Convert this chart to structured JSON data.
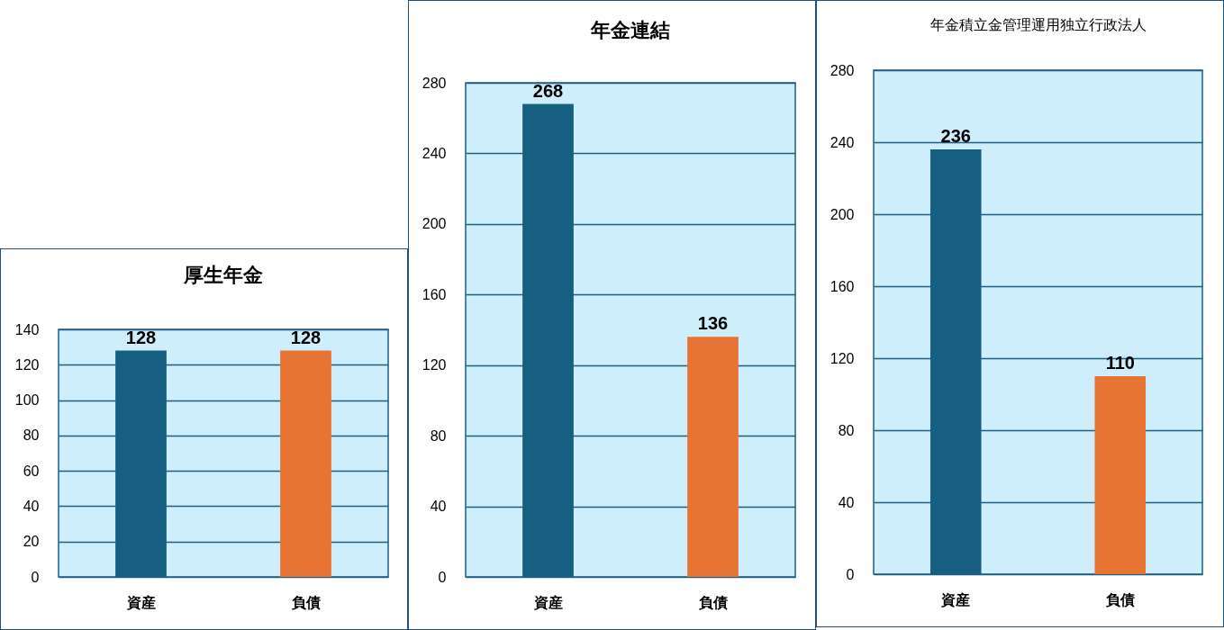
{
  "chart_data": [
    {
      "type": "bar",
      "title": "厚生年金",
      "categories": [
        "資産",
        "負債"
      ],
      "values": [
        128,
        128
      ],
      "colors": [
        "#165f80",
        "#e87433"
      ],
      "ylim": [
        0,
        140
      ],
      "yticks": [
        0,
        20,
        40,
        60,
        80,
        100,
        120,
        140
      ],
      "grid": "y",
      "data_labels": true
    },
    {
      "type": "bar",
      "title": "年金連結",
      "categories": [
        "資産",
        "負債"
      ],
      "values": [
        268,
        136
      ],
      "colors": [
        "#165f80",
        "#e87433"
      ],
      "ylim": [
        0,
        280
      ],
      "yticks": [
        0,
        40,
        80,
        120,
        160,
        200,
        240,
        280
      ],
      "grid": "y",
      "data_labels": true
    },
    {
      "type": "bar",
      "title": "年金積立金管理運用独立行政法人",
      "categories": [
        "資産",
        "負債"
      ],
      "values": [
        236,
        110
      ],
      "colors": [
        "#165f80",
        "#e87433"
      ],
      "ylim": [
        0,
        280
      ],
      "yticks": [
        0,
        40,
        80,
        120,
        160,
        200,
        240,
        280
      ],
      "grid": "y",
      "data_labels": true
    }
  ]
}
